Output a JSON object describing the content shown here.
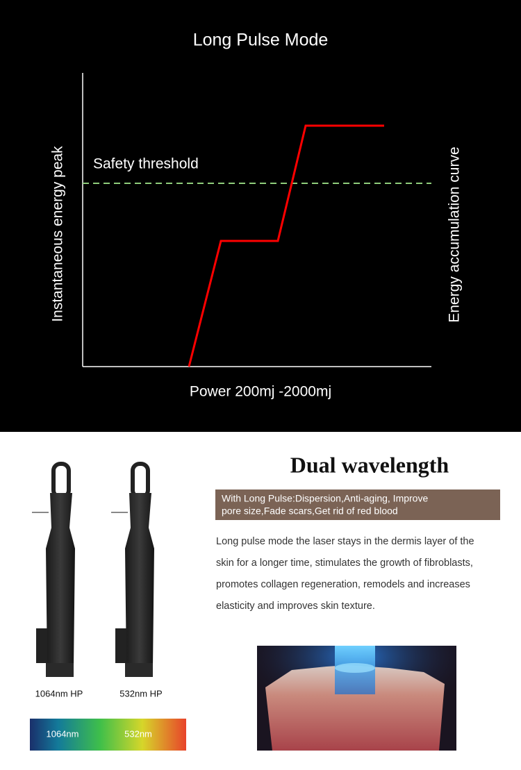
{
  "diagram": {
    "title": "Long Pulse Mode",
    "y_label": "Instantaneous energy peak",
    "y2_label": "Energy accumulation curve",
    "x_label": "Power 200mj -2000mj",
    "threshold_label": "Safety threshold"
  },
  "product": {
    "heading": "Dual wavelength",
    "highlight": [
      "With Long Pulse:Dispersion,Anti-aging, Improve",
      "pore size,Fade scars,Get rid of red blood"
    ],
    "description": [
      "Long pulse mode the laser stays in the dermis layer of the",
      "skin for a longer time, stimulates the growth of fibroblasts,",
      "promotes collagen regeneration, remodels and increases",
      "elasticity and improves skin texture."
    ],
    "handpieces": [
      "1064nm HP",
      "532nm HP"
    ],
    "spectrum": [
      "1064nm",
      "532nm"
    ]
  }
}
